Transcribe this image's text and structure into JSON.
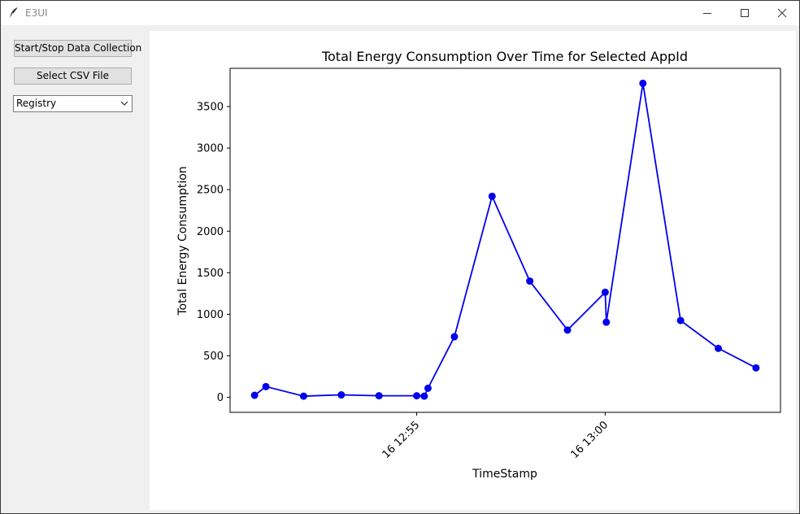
{
  "window": {
    "title": "E3UI"
  },
  "controls": {
    "startstop_label": "Start/Stop Data Collection",
    "select_csv_label": "Select CSV File",
    "appid_selected": "Registry"
  },
  "colors": {
    "series": "#0000ee",
    "frame": "#000000"
  },
  "chart_data": {
    "type": "line",
    "title": "Total Energy Consumption Over Time for Selected AppId",
    "xlabel": "TimeStamp",
    "ylabel": "Total Energy Consumption",
    "x_tick_labels": [
      "16 12:55",
      "16 13:00"
    ],
    "x_ticks_minutes": [
      0,
      5
    ],
    "xlim_minutes": [
      -4.95,
      9.65
    ],
    "ylim": [
      -180,
      3960
    ],
    "y_ticks": [
      0,
      500,
      1000,
      1500,
      2000,
      2500,
      3000,
      3500
    ],
    "grid": false,
    "series": [
      {
        "marker": "circle",
        "points": [
          {
            "t": -4.3,
            "y": 25
          },
          {
            "t": -4.0,
            "y": 130
          },
          {
            "t": -3.0,
            "y": 15
          },
          {
            "t": -2.0,
            "y": 30
          },
          {
            "t": -1.0,
            "y": 20
          },
          {
            "t": 0.0,
            "y": 20
          },
          {
            "t": 0.2,
            "y": 15
          },
          {
            "t": 0.3,
            "y": 110
          },
          {
            "t": 1.0,
            "y": 730
          },
          {
            "t": 2.0,
            "y": 2420
          },
          {
            "t": 3.0,
            "y": 1400
          },
          {
            "t": 4.0,
            "y": 810
          },
          {
            "t": 5.0,
            "y": 1265
          },
          {
            "t": 5.03,
            "y": 905
          },
          {
            "t": 6.0,
            "y": 3780
          },
          {
            "t": 7.0,
            "y": 925
          },
          {
            "t": 8.0,
            "y": 590
          },
          {
            "t": 9.0,
            "y": 355
          }
        ]
      }
    ]
  }
}
